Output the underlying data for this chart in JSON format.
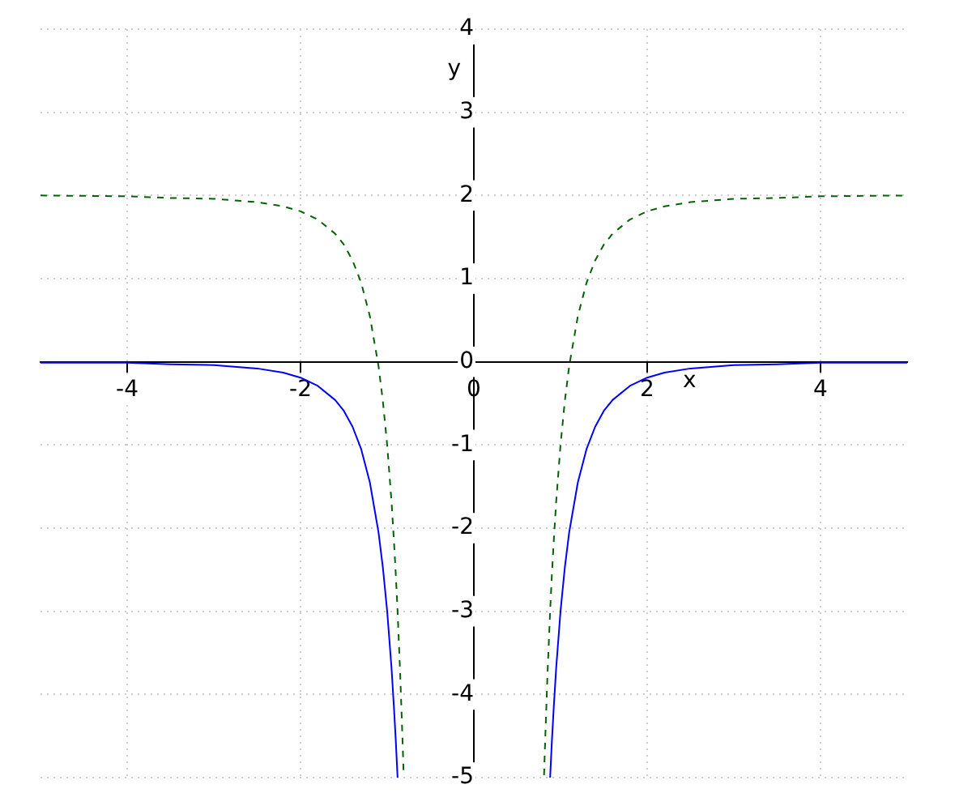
{
  "chart_data": {
    "type": "line",
    "xlabel": "x",
    "ylabel": "y",
    "xlim": [
      -5,
      5
    ],
    "ylim": [
      -5,
      4
    ],
    "xticks": [
      -4,
      -2,
      0,
      2,
      4
    ],
    "yticks": [
      -5,
      -4,
      -3,
      -2,
      -1,
      0,
      1,
      2,
      3,
      4
    ],
    "grid": true,
    "legend": false,
    "marker": "none",
    "series": [
      {
        "color": "#0000ff",
        "line_style": "solid",
        "x": [
          -5,
          -4,
          -3.5,
          -3,
          -2.5,
          -2.2,
          -2,
          -1.8,
          -1.6,
          -1.5,
          -1.4,
          -1.3,
          -1.2,
          -1.1,
          -1.05,
          -1,
          -0.95,
          -0.92,
          -0.9,
          -0.88,
          0,
          0.88,
          0.9,
          0.92,
          0.95,
          1,
          1.05,
          1.1,
          1.2,
          1.3,
          1.4,
          1.5,
          1.6,
          1.8,
          2,
          2.2,
          2.5,
          3,
          3.5,
          4,
          5
        ],
        "values": [
          -0.01,
          -0.01,
          -0.03,
          -0.04,
          -0.08,
          -0.13,
          -0.19,
          -0.29,
          -0.46,
          -0.59,
          -0.78,
          -1.05,
          -1.45,
          -2.05,
          -2.47,
          -3,
          -3.68,
          -4.19,
          -4.57,
          -5,
          null,
          -5,
          -4.57,
          -4.19,
          -3.68,
          -3,
          -2.47,
          -2.05,
          -1.45,
          -1.05,
          -0.78,
          -0.59,
          -0.46,
          -0.29,
          -0.19,
          -0.13,
          -0.08,
          -0.04,
          -0.03,
          -0.01,
          -0.01
        ]
      },
      {
        "color": "#006400",
        "line_style": "dashed",
        "x": [
          -5,
          -4,
          -3.5,
          -3,
          -2.5,
          -2.2,
          -2,
          -1.8,
          -1.6,
          -1.5,
          -1.4,
          -1.3,
          -1.2,
          -1.1,
          -1.05,
          -1,
          -0.95,
          -0.92,
          -0.9,
          -0.88,
          -0.85,
          -0.82,
          -0.81,
          0,
          0.81,
          0.82,
          0.85,
          0.88,
          0.9,
          0.92,
          0.95,
          1,
          1.05,
          1.1,
          1.2,
          1.3,
          1.4,
          1.5,
          1.6,
          1.8,
          2,
          2.2,
          2.5,
          3,
          3.5,
          4,
          5
        ],
        "values": [
          2,
          1.99,
          1.97,
          1.96,
          1.92,
          1.87,
          1.81,
          1.71,
          1.54,
          1.41,
          1.22,
          0.95,
          0.55,
          -0.05,
          -0.47,
          -1,
          -1.68,
          -2.19,
          -2.57,
          -3,
          -3.75,
          -4.64,
          -4.97,
          null,
          -4.97,
          -4.64,
          -3.75,
          -3,
          -2.57,
          -2.19,
          -1.68,
          -1,
          -0.47,
          -0.05,
          0.55,
          0.95,
          1.22,
          1.41,
          1.54,
          1.71,
          1.81,
          1.87,
          1.92,
          1.96,
          1.97,
          1.99,
          2
        ]
      }
    ]
  }
}
